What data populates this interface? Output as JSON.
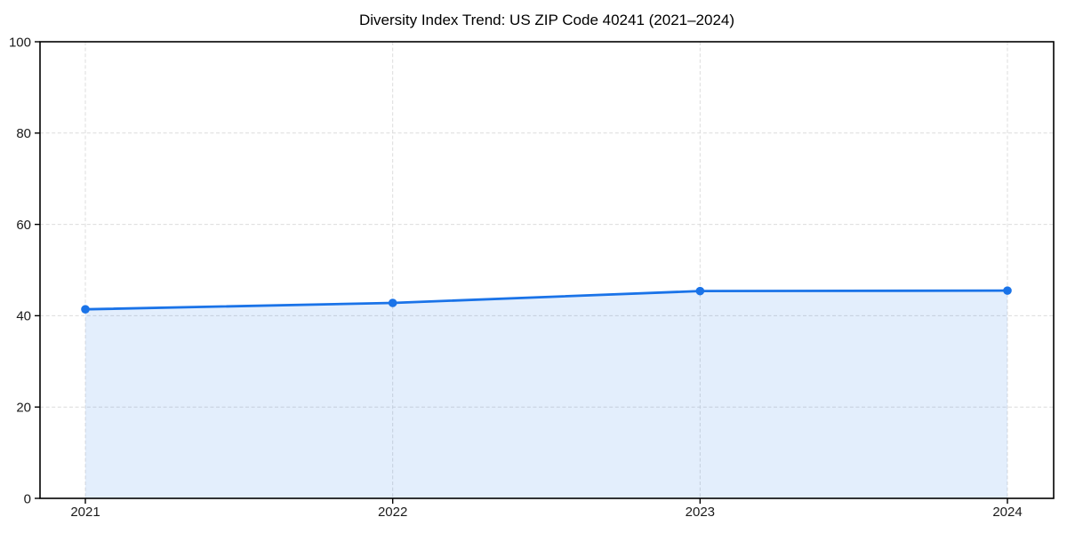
{
  "chart_data": {
    "type": "line",
    "title": "Diversity Index Trend: US ZIP Code 40241 (2021–2024)",
    "categories": [
      "2021",
      "2022",
      "2023",
      "2024"
    ],
    "series": [
      {
        "name": "Diversity Index",
        "values": [
          41.4,
          42.8,
          45.4,
          45.5
        ]
      }
    ],
    "xlabel": "",
    "ylabel": "",
    "ylim": [
      0,
      100
    ],
    "yticks": [
      0,
      20,
      40,
      60,
      80,
      100
    ],
    "grid": true,
    "grid_style": "dashed",
    "legend_position": "none",
    "area_fill": true,
    "marker": "circle",
    "colors": {
      "line": "#1a73e8",
      "marker": "#1a73e8",
      "fill": "#1a73e8",
      "fill_opacity": 0.12,
      "grid": "#dcdcdc",
      "spine": "#000000",
      "tick_label": "#1a1a1a",
      "title": "#000000",
      "background": "#ffffff"
    }
  }
}
